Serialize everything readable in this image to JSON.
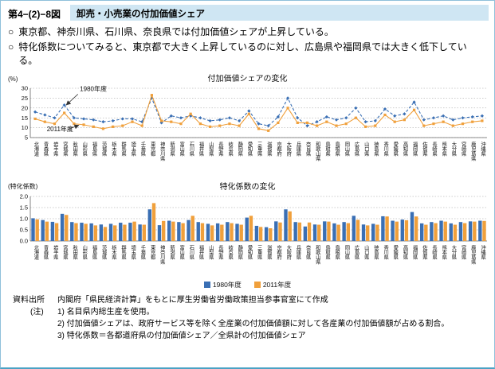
{
  "header": {
    "figure_label": "第4−(2)−8図",
    "title": "卸売・小売業の付加価値シェア"
  },
  "bullet_marker": "○",
  "bullets": [
    "東京都、神奈川県、石川県、奈良県では付加価値シェアが上昇している。",
    "特化係数についてみると、東京都で大きく上昇しているのに対し、広島県や福岡県では大きく低下している。"
  ],
  "colors": {
    "series_1980": "#3a6fb4",
    "series_2011": "#f0a03c",
    "header_bg": "#cfe6f3"
  },
  "chart_data": [
    {
      "type": "line",
      "title": "付加価値シェアの変化",
      "ylabel": "(%)",
      "ylim": [
        5,
        30
      ],
      "ytick_step": 5,
      "ytick_decimals": 0,
      "grid": "dotted-horizontal",
      "categories": [
        "北海道",
        "青森県",
        "岩手県",
        "宮城県",
        "秋田県",
        "山形県",
        "福島県",
        "茨城県",
        "栃木県",
        "群馬県",
        "埼玉県",
        "千葉県",
        "東京都",
        "神奈川県",
        "新潟県",
        "富山県",
        "石川県",
        "福井県",
        "山梨県",
        "長野県",
        "岐阜県",
        "静岡県",
        "愛知県",
        "三重県",
        "滋賀県",
        "京都府",
        "大阪府",
        "兵庫県",
        "奈良県",
        "和歌山県",
        "鳥取県",
        "島根県",
        "岡山県",
        "広島県",
        "山口県",
        "徳島県",
        "香川県",
        "愛媛県",
        "高知県",
        "福岡県",
        "佐賀県",
        "長崎県",
        "熊本県",
        "大分県",
        "宮崎県",
        "鹿児島県",
        "沖縄県"
      ],
      "series": [
        {
          "name": "1980年度",
          "color": "#3a6fb4",
          "dash": true,
          "values": [
            18,
            16.5,
            15,
            21.5,
            15,
            14.5,
            14,
            13,
            13.5,
            14.5,
            14.5,
            13,
            25,
            12.5,
            16,
            15,
            16,
            15,
            13.5,
            14,
            15,
            13.5,
            18.5,
            12,
            11,
            15.5,
            25,
            15,
            11,
            13,
            15.5,
            14,
            15,
            20,
            13,
            13.5,
            19.5,
            16,
            17,
            23,
            14,
            15,
            16,
            14,
            15,
            15.5,
            16
          ]
        },
        {
          "name": "2011年度",
          "color": "#f0a03c",
          "dash": false,
          "values": [
            14.5,
            13,
            12,
            17.5,
            12,
            11.5,
            10.5,
            9.5,
            10.5,
            11,
            13,
            11,
            26.5,
            13.5,
            13,
            12,
            17,
            12,
            10.5,
            11,
            12,
            11,
            17,
            9.5,
            8.5,
            12.5,
            20,
            12.5,
            12.5,
            11,
            13,
            11,
            12,
            15,
            10.5,
            11,
            16.5,
            13,
            14,
            19,
            11,
            12,
            13,
            11,
            12,
            13,
            13.5
          ]
        }
      ],
      "annotations": [
        {
          "label": "1980年度",
          "text_at": [
            4.6,
            28.5
          ],
          "arrow_from": [
            4.4,
            27
          ],
          "arrow_to": [
            3.2,
            21.5
          ]
        },
        {
          "label": "2011年度",
          "text_at": [
            1.2,
            8.2
          ],
          "arrow_from": [
            3.4,
            9.2
          ],
          "arrow_to": [
            4.5,
            11.3
          ]
        }
      ]
    },
    {
      "type": "bar",
      "title": "特化係数の変化",
      "ylabel": "(特化係数)",
      "ylim": [
        0,
        2
      ],
      "ytick_step": 0.5,
      "ytick_decimals": 1,
      "grid": "dotted-horizontal",
      "legend_position": "bottom",
      "categories": [
        "北海道",
        "青森県",
        "岩手県",
        "宮城県",
        "秋田県",
        "山形県",
        "福島県",
        "茨城県",
        "栃木県",
        "群馬県",
        "埼玉県",
        "千葉県",
        "東京都",
        "神奈川県",
        "新潟県",
        "富山県",
        "石川県",
        "福井県",
        "山梨県",
        "長野県",
        "岐阜県",
        "静岡県",
        "愛知県",
        "三重県",
        "滋賀県",
        "京都府",
        "大阪府",
        "兵庫県",
        "奈良県",
        "和歌山県",
        "鳥取県",
        "島根県",
        "岡山県",
        "広島県",
        "山口県",
        "徳島県",
        "香川県",
        "愛媛県",
        "高知県",
        "福岡県",
        "佐賀県",
        "長崎県",
        "熊本県",
        "大分県",
        "宮崎県",
        "鹿児島県",
        "沖縄県"
      ],
      "series": [
        {
          "name": "1980年度",
          "color": "#3a6fb4",
          "values": [
            1.02,
            0.94,
            0.86,
            1.22,
            0.85,
            0.82,
            0.79,
            0.74,
            0.77,
            0.82,
            0.82,
            0.74,
            1.42,
            0.71,
            0.91,
            0.85,
            0.94,
            0.85,
            0.77,
            0.79,
            0.85,
            0.77,
            1.05,
            0.68,
            0.62,
            0.88,
            1.42,
            0.85,
            0.65,
            0.74,
            0.88,
            0.79,
            0.85,
            1.13,
            0.74,
            0.77,
            1.11,
            0.91,
            0.96,
            1.3,
            0.79,
            0.85,
            0.91,
            0.79,
            0.85,
            0.88,
            0.91
          ]
        },
        {
          "name": "2011年度",
          "color": "#f0a03c",
          "values": [
            0.97,
            0.87,
            0.8,
            1.17,
            0.8,
            0.77,
            0.7,
            0.63,
            0.7,
            0.73,
            0.87,
            0.73,
            1.7,
            0.9,
            0.87,
            0.8,
            1.13,
            0.8,
            0.7,
            0.73,
            0.8,
            0.73,
            1.13,
            0.63,
            0.57,
            0.83,
            1.33,
            0.83,
            0.83,
            0.73,
            0.87,
            0.73,
            0.8,
            0.95,
            0.7,
            0.73,
            1.1,
            0.87,
            0.93,
            1.1,
            0.73,
            0.8,
            0.87,
            0.73,
            0.8,
            0.87,
            0.9
          ]
        }
      ]
    }
  ],
  "footer": {
    "source_label": "資料出所",
    "source_text": "内閣府「県民経済計算」をもとに厚生労働省労働政策担当参事官室にて作成",
    "notes_label": "(注)",
    "notes": [
      "1) 名目県内総生産を使用。",
      "2) 付加価値シェアは、政府サービス等を除く全産業の付加価値額に対して各産業の付加価値額が占める割合。",
      "3) 特化係数＝各都道府県の付加価値シェア／全県計の付加価値シェア"
    ]
  }
}
